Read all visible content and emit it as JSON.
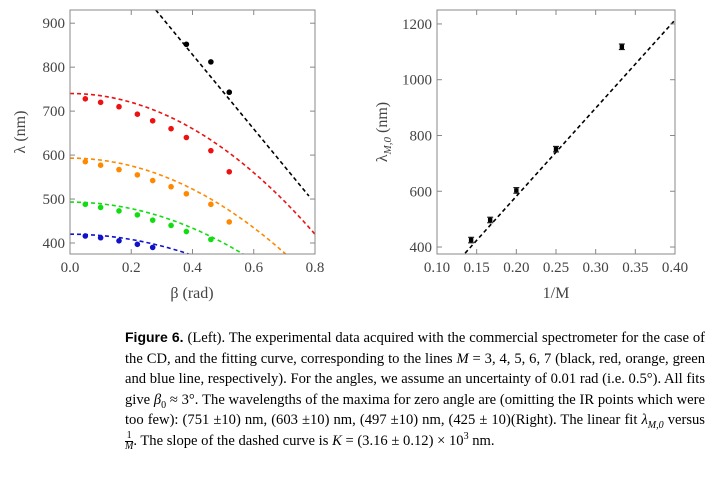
{
  "figure": {
    "left_panel": {
      "ylabel": "λ (nm)",
      "xlabel": "β (rad)"
    },
    "right_panel": {
      "ylabel_main": "λ",
      "ylabel_sub": "M,0",
      "ylabel_unit": " (nm)",
      "xlabel": "1/M"
    }
  },
  "caption": {
    "label": "Figure 6.",
    "p1": " (Left). The experimental data acquired with the commercial spectrometer for the case of the CD, and the fitting curve, corresponding to the lines ",
    "p2": " = 3, 4, 5, 6, 7 (black, red, orange, green and blue line, respectively). For the angles, we assume an uncertainty of 0.01 rad (i.e. 0.5°). All fits give ",
    "p3": " ≈ 3°. The wavelengths of the maxima for zero angle are (omitting the IR points which were too few): (751 ±10) nm, (603 ±10) nm, (497 ±10) nm, (425 ± 10)(Right). The linear fit ",
    "p4": " versus ",
    "p5": ". The slope of the dashed curve is ",
    "p6": " = (3.16 ± 0.12) × 10",
    "p7": "3",
    "p8": " nm.",
    "var_M": "M",
    "var_beta": "β",
    "sub_0": "0",
    "var_lambda": "λ",
    "sub_M0": "M,0",
    "frac_num": "1",
    "frac_den": "M",
    "var_K": "K"
  },
  "chart_data": [
    {
      "type": "scatter",
      "xlabel": "β (rad)",
      "ylabel": "λ (nm)",
      "xlim": [
        0,
        0.8
      ],
      "ylim": [
        375,
        930
      ],
      "xticks": [
        "0.0",
        "0.2",
        "0.4",
        "0.6",
        "0.8"
      ],
      "yticks": [
        "400",
        "500",
        "600",
        "700",
        "800",
        "900"
      ],
      "grid": false,
      "series": [
        {
          "color": "#000000",
          "x": [
            0.38,
            0.46,
            0.52
          ],
          "y": [
            852,
            812,
            743
          ],
          "fit": {
            "x0": 0.28,
            "y0": 930,
            "x1": 0.78,
            "y1": 507
          }
        },
        {
          "color": "#ee1111",
          "x": [
            0.05,
            0.1,
            0.16,
            0.22,
            0.27,
            0.33,
            0.38,
            0.46,
            0.52
          ],
          "y": [
            728,
            720,
            710,
            693,
            678,
            660,
            640,
            610,
            562
          ],
          "fit": {
            "a": 740,
            "b": 500
          }
        },
        {
          "color": "#ff8800",
          "x": [
            0.05,
            0.1,
            0.16,
            0.22,
            0.27,
            0.33,
            0.38,
            0.46,
            0.52
          ],
          "y": [
            585,
            577,
            567,
            555,
            542,
            528,
            512,
            488,
            448
          ],
          "fit": {
            "a": 593,
            "b": 440
          }
        },
        {
          "color": "#11dd11",
          "x": [
            0.05,
            0.1,
            0.16,
            0.22,
            0.27,
            0.33,
            0.38,
            0.46
          ],
          "y": [
            488,
            481,
            473,
            464,
            452,
            440,
            426,
            408
          ],
          "fit": {
            "a": 493,
            "b": 370
          }
        },
        {
          "color": "#1111cc",
          "x": [
            0.05,
            0.1,
            0.16,
            0.22,
            0.27
          ],
          "y": [
            416,
            412,
            405,
            397,
            390
          ],
          "fit": {
            "a": 420,
            "b": 300
          }
        }
      ]
    },
    {
      "type": "scatter",
      "xlabel": "1/M",
      "ylabel": "λM,0 (nm)",
      "xlim": [
        0.1,
        0.4
      ],
      "ylim": [
        375,
        1250
      ],
      "xticks": [
        "0.10",
        "0.15",
        "0.20",
        "0.25",
        "0.30",
        "0.35",
        "0.40"
      ],
      "yticks": [
        "400",
        "600",
        "800",
        "1000",
        "1200"
      ],
      "grid": false,
      "series": [
        {
          "color": "#000000",
          "x": [
            0.143,
            0.167,
            0.2,
            0.25,
            0.333
          ],
          "y": [
            425,
            497,
            603,
            751,
            1118
          ],
          "err": [
            10,
            10,
            10,
            10,
            10
          ],
          "fit": {
            "slope": 3160,
            "intercept": -50
          }
        }
      ]
    }
  ]
}
